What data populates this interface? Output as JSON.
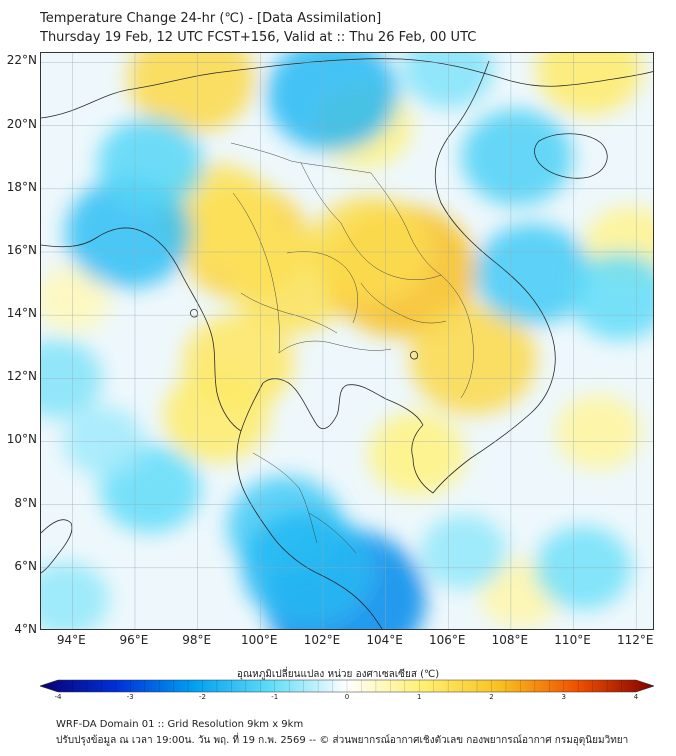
{
  "title": {
    "line1": "Temperature Change 24-hr (℃) - [Data Assimilation]",
    "line2": "Thursday 19 Feb, 12 UTC FCST+156, Valid at :: Thu 26 Feb, 00 UTC"
  },
  "map": {
    "lat_labels": [
      "22°N",
      "20°N",
      "18°N",
      "16°N",
      "14°N",
      "12°N",
      "10°N",
      "8°N",
      "6°N",
      "4°N"
    ],
    "lon_labels": [
      "94°E",
      "96°E",
      "98°E",
      "100°E",
      "102°E",
      "104°E",
      "106°E",
      "108°E",
      "110°E",
      "112°E"
    ],
    "lat_values": [
      22,
      20,
      18,
      16,
      14,
      12,
      10,
      8,
      6,
      4
    ],
    "lon_values": [
      94,
      96,
      98,
      100,
      102,
      104,
      106,
      108,
      110,
      112
    ],
    "lat_range": [
      4,
      22.3
    ],
    "lon_range": [
      93,
      112.6
    ],
    "anomalies": [
      {
        "lon": 99.5,
        "lat": 16.3,
        "value": 1.6
      },
      {
        "lon": 98.6,
        "lat": 17.2,
        "value": 1.3
      },
      {
        "lon": 101.0,
        "lat": 15.0,
        "value": 1.3
      },
      {
        "lon": 104.5,
        "lat": 15.4,
        "value": 2.0
      },
      {
        "lon": 103.5,
        "lat": 16.1,
        "value": 1.4
      },
      {
        "lon": 106.8,
        "lat": 12.6,
        "value": 1.5
      },
      {
        "lon": 99.3,
        "lat": 12.5,
        "value": 1.2
      },
      {
        "lon": 98.6,
        "lat": 10.8,
        "value": 1.1
      },
      {
        "lon": 97.8,
        "lat": 21.5,
        "value": 1.5
      },
      {
        "lon": 103.3,
        "lat": 20.0,
        "value": 0.9
      },
      {
        "lon": 110.5,
        "lat": 21.8,
        "value": 1.1
      },
      {
        "lon": 111.8,
        "lat": 16.2,
        "value": 0.8
      },
      {
        "lon": 105.0,
        "lat": 9.6,
        "value": 0.9
      },
      {
        "lon": 110.8,
        "lat": 10.3,
        "value": 0.7
      },
      {
        "lon": 108.3,
        "lat": 5.2,
        "value": 0.6
      },
      {
        "lon": 94.0,
        "lat": 14.5,
        "value": 0.5
      },
      {
        "lon": 102.3,
        "lat": 21.0,
        "value": -1.6
      },
      {
        "lon": 95.8,
        "lat": 16.6,
        "value": -1.5
      },
      {
        "lon": 96.5,
        "lat": 18.8,
        "value": -1.1
      },
      {
        "lon": 102.7,
        "lat": 5.0,
        "value": -2.2
      },
      {
        "lon": 100.8,
        "lat": 7.3,
        "value": -1.3
      },
      {
        "lon": 101.5,
        "lat": 6.0,
        "value": -1.6
      },
      {
        "lon": 108.7,
        "lat": 15.3,
        "value": -1.3
      },
      {
        "lon": 108.2,
        "lat": 19.0,
        "value": -1.2
      },
      {
        "lon": 111.5,
        "lat": 14.6,
        "value": -1.0
      },
      {
        "lon": 96.5,
        "lat": 8.5,
        "value": -1.0
      },
      {
        "lon": 93.5,
        "lat": 12.0,
        "value": -0.8
      },
      {
        "lon": 110.3,
        "lat": 6.0,
        "value": -0.9
      },
      {
        "lon": 106.0,
        "lat": 21.8,
        "value": -0.8
      },
      {
        "lon": 93.8,
        "lat": 5.0,
        "value": -0.7
      },
      {
        "lon": 106.5,
        "lat": 6.5,
        "value": -0.7
      },
      {
        "lon": 95.0,
        "lat": 10.0,
        "value": -0.6
      }
    ]
  },
  "colorbar": {
    "title": "อุณหภูมิเปลี่ยนแปลง หน่วย องศาเซลเซียส (℃)",
    "min": -4,
    "max": 4,
    "ticks": [
      "-4",
      "-3",
      "-2",
      "-1",
      "0",
      "1",
      "2",
      "3",
      "4"
    ],
    "colors": {
      "n4": "#0a0070",
      "n3": "#0030d8",
      "n2": "#00a0f0",
      "n1": "#60dcf8",
      "zero": "#ffffff",
      "p1": "#fff070",
      "p2": "#f8c020",
      "p3": "#f05000",
      "p4": "#800000"
    }
  },
  "footer": {
    "line1": "WRF-DA Domain 01 :: Grid Resolution 9km x 9km",
    "line2": "ปรับปรุงข้อมูล ณ เวลา 19:00น. วัน พฤ. ที่ 19 ก.พ. 2569 -- © ส่วนพยากรณ์อากาศเชิงตัวเลข กองพยากรณ์อากาศ กรมอุตุนิยมวิทยา"
  }
}
